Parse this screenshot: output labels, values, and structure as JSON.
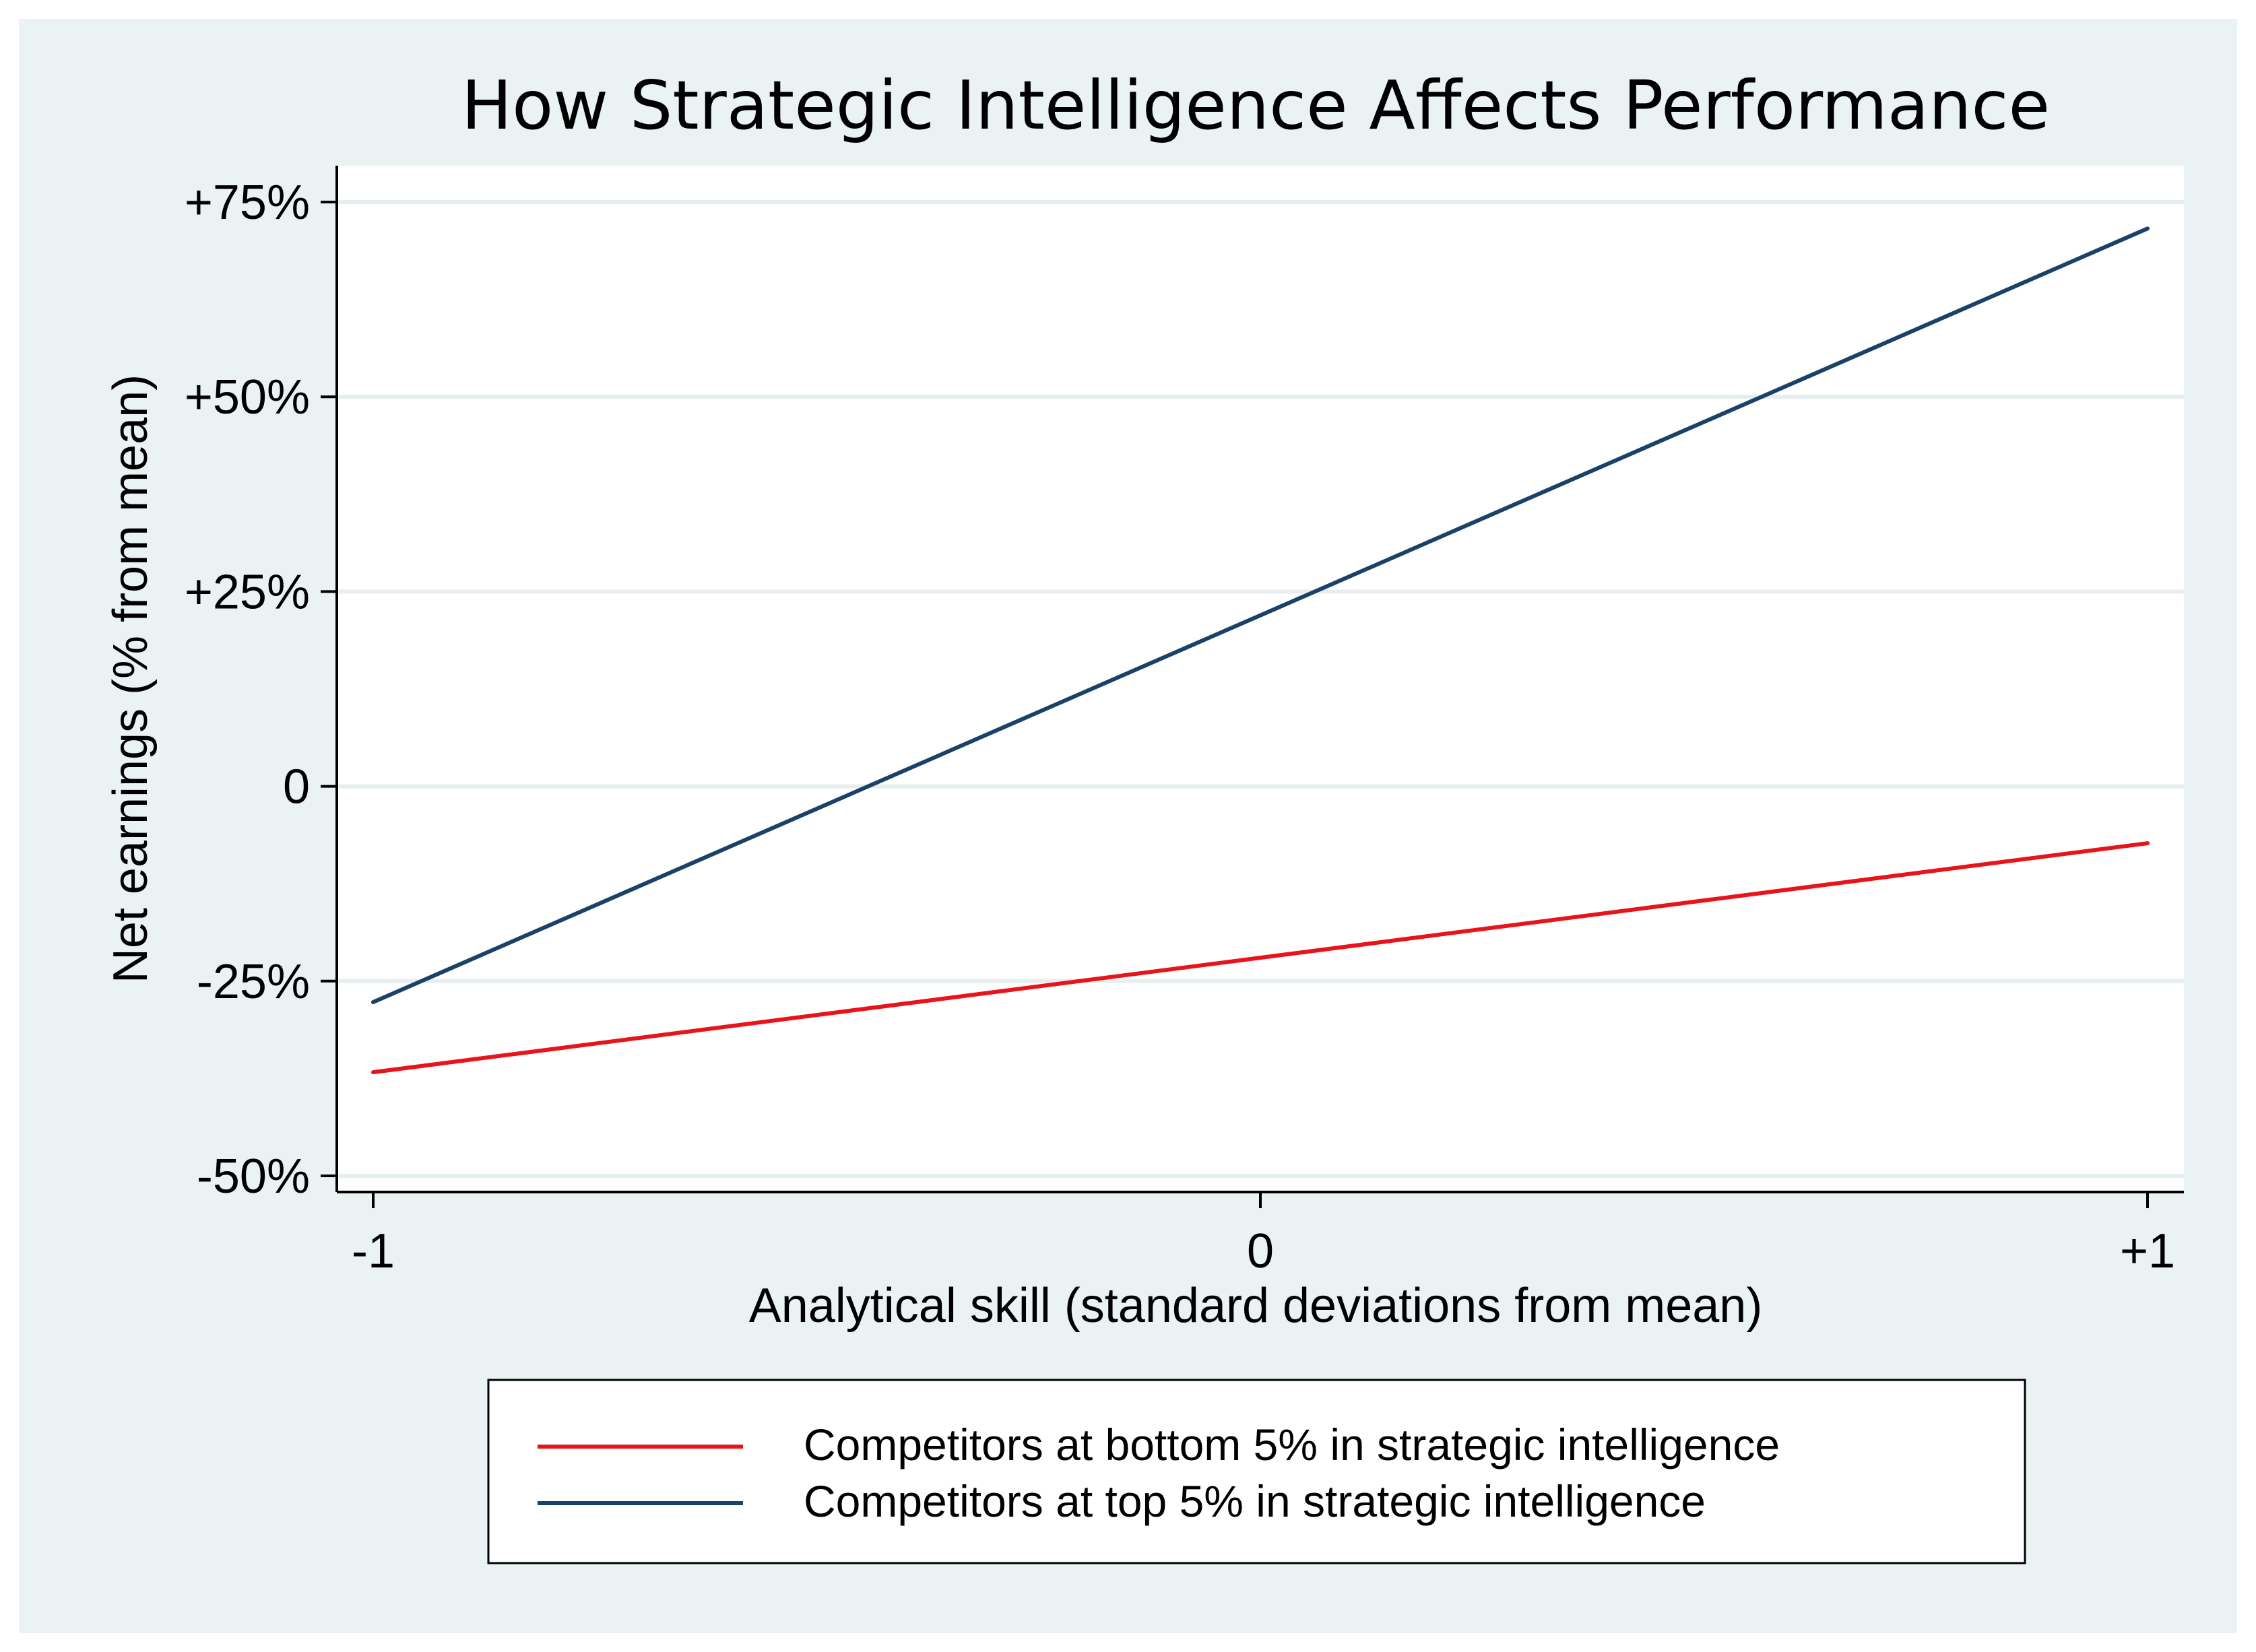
{
  "chart_data": {
    "type": "line",
    "title": "How Strategic Intelligence Affects Performance",
    "xlabel": "Analytical skill (standard deviations from mean)",
    "ylabel": "Net earnings (% from mean)",
    "x_ticks": [
      {
        "value": -1,
        "label": "-1"
      },
      {
        "value": 0,
        "label": "0"
      },
      {
        "value": 1,
        "label": "+1"
      }
    ],
    "y_ticks": [
      {
        "value": 75,
        "label": "+75%"
      },
      {
        "value": 50,
        "label": "+50%"
      },
      {
        "value": 25,
        "label": "+25%"
      },
      {
        "value": 0,
        "label": "0"
      },
      {
        "value": -25,
        "label": "-25%"
      },
      {
        "value": -50,
        "label": "-50%"
      }
    ],
    "xlim": [
      -1,
      1
    ],
    "ylim": [
      -50,
      75
    ],
    "grid": true,
    "legend_position": "bottom",
    "series": [
      {
        "name": "Competitors at bottom 5% in strategic intelligence",
        "color": "#e8141b",
        "x": [
          -1,
          1
        ],
        "y": [
          -36.7,
          -7.3
        ]
      },
      {
        "name": "Competitors at top 5% in strategic intelligence",
        "color": "#1a4168",
        "x": [
          -1,
          1
        ],
        "y": [
          -27.7,
          71.6
        ]
      }
    ]
  }
}
